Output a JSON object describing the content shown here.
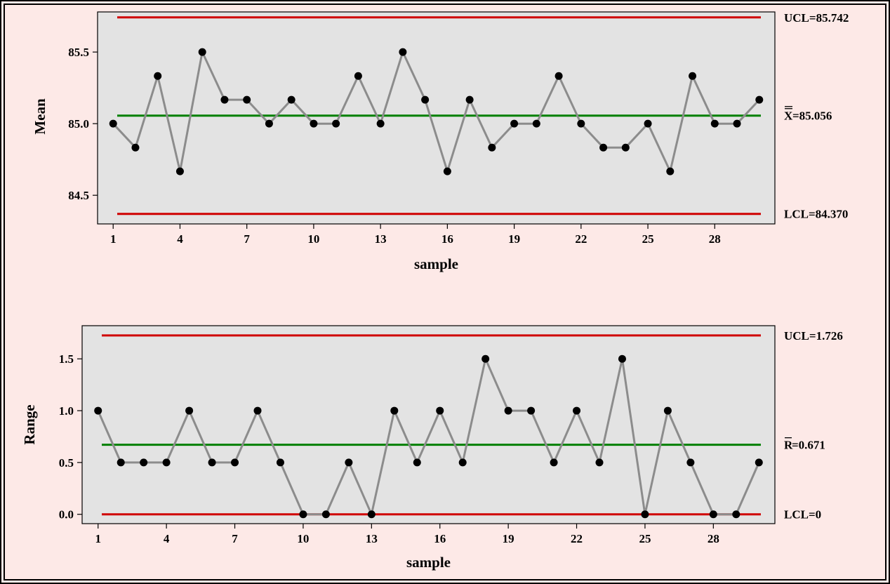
{
  "colors": {
    "background": "#fde9e7",
    "plot_area": "#e3e3e3",
    "control_limit": "#d00000",
    "center_line": "#008000",
    "data_line": "#8c8c8c",
    "point": "#000000",
    "frame": "#000000"
  },
  "chart_data": [
    {
      "type": "line",
      "xlabel": "sample",
      "ylabel": "Mean",
      "xlim": [
        0.3,
        30.7
      ],
      "ylim": [
        84.3,
        85.78
      ],
      "xticks": [
        1,
        4,
        7,
        10,
        13,
        16,
        19,
        22,
        25,
        28
      ],
      "yticks": [
        84.5,
        85.0,
        85.5
      ],
      "ytick_labels": [
        "84.5",
        "85.0",
        "85.5"
      ],
      "x": [
        1,
        2,
        3,
        4,
        5,
        6,
        7,
        8,
        9,
        10,
        11,
        12,
        13,
        14,
        15,
        16,
        17,
        18,
        19,
        20,
        21,
        22,
        23,
        24,
        25,
        26,
        27,
        28,
        29,
        30
      ],
      "values": [
        85.0,
        84.833,
        85.333,
        84.667,
        85.5,
        85.167,
        85.167,
        85.0,
        85.167,
        85.0,
        85.0,
        85.333,
        85.0,
        85.5,
        85.167,
        84.667,
        85.167,
        84.833,
        85.0,
        85.0,
        85.333,
        85.0,
        84.833,
        84.833,
        85.0,
        84.667,
        85.333,
        85.0,
        85.0,
        85.167
      ],
      "control_lines": {
        "ucl": 85.742,
        "center": 85.056,
        "lcl": 84.37
      },
      "labels": {
        "ucl": "UCL=85.742",
        "center_symbol": "X",
        "center_value": "=85.056",
        "lcl": "LCL=84.370"
      }
    },
    {
      "type": "line",
      "xlabel": "sample",
      "ylabel": "Range",
      "xlim": [
        0.3,
        30.7
      ],
      "ylim": [
        -0.09,
        1.82
      ],
      "xticks": [
        1,
        4,
        7,
        10,
        13,
        16,
        19,
        22,
        25,
        28
      ],
      "yticks": [
        0.0,
        0.5,
        1.0,
        1.5
      ],
      "ytick_labels": [
        "0.0",
        "0.5",
        "1.0",
        "1.5"
      ],
      "x": [
        1,
        2,
        3,
        4,
        5,
        6,
        7,
        8,
        9,
        10,
        11,
        12,
        13,
        14,
        15,
        16,
        17,
        18,
        19,
        20,
        21,
        22,
        23,
        24,
        25,
        26,
        27,
        28,
        29,
        30
      ],
      "values": [
        1.0,
        0.5,
        0.5,
        0.5,
        1.0,
        0.5,
        0.5,
        1.0,
        0.5,
        0.0,
        0.0,
        0.5,
        0.0,
        1.0,
        0.5,
        1.0,
        0.5,
        1.5,
        1.0,
        1.0,
        0.5,
        1.0,
        0.5,
        1.5,
        0.0,
        1.0,
        0.5,
        0.0,
        0.0,
        0.5
      ],
      "control_lines": {
        "ucl": 1.726,
        "center": 0.671,
        "lcl": 0.0
      },
      "labels": {
        "ucl": "UCL=1.726",
        "center_symbol": "R",
        "center_value": "=0.671",
        "lcl": "LCL=0"
      }
    }
  ]
}
